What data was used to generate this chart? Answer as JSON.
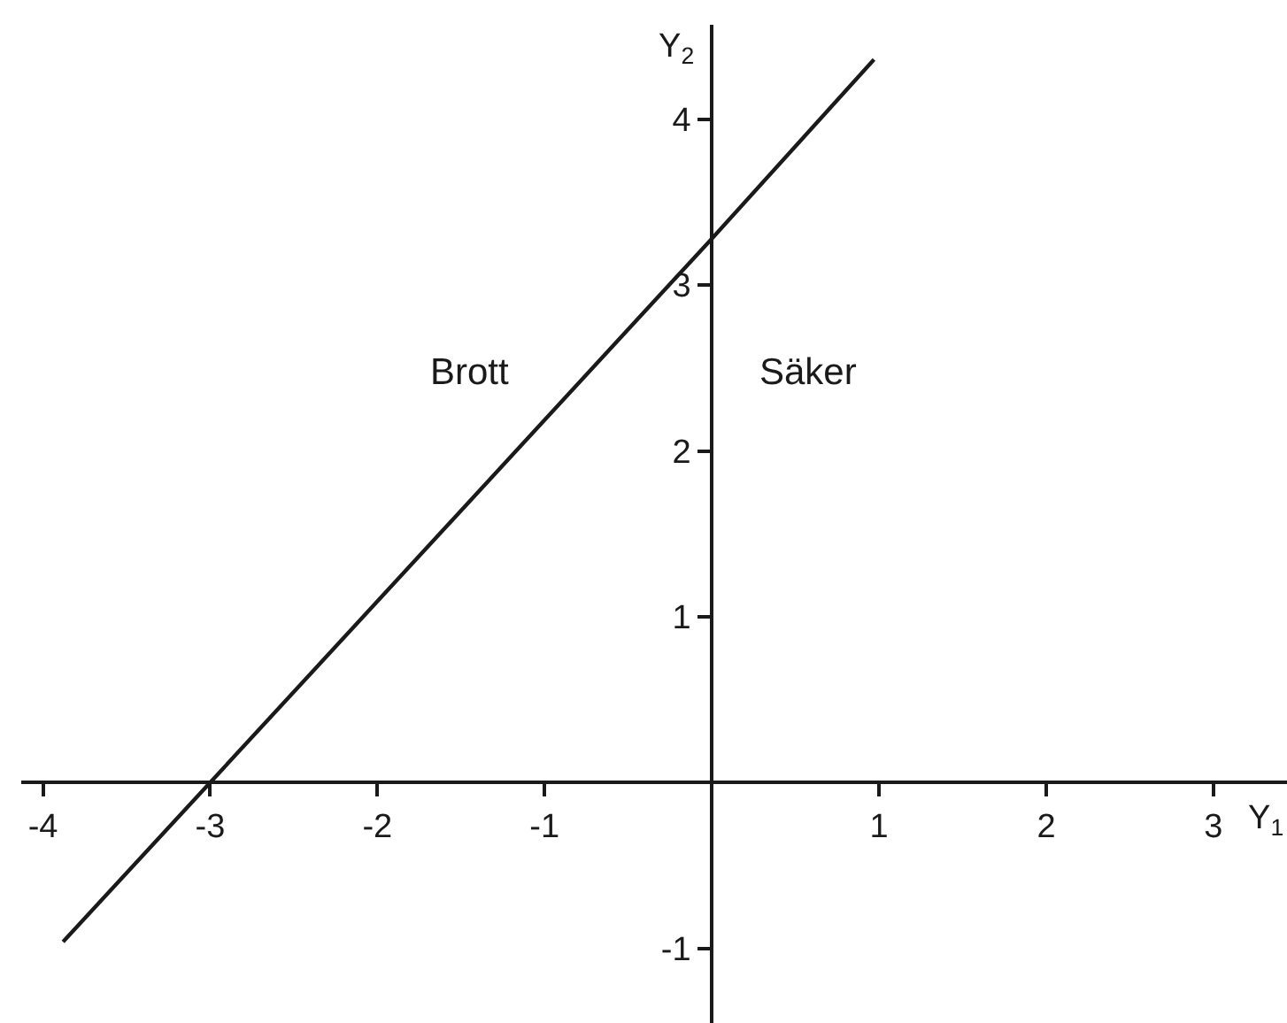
{
  "chart_data": {
    "type": "line",
    "x": [
      -3.88,
      -3,
      0,
      0.97
    ],
    "values": [
      -0.96,
      0,
      3.28,
      4.36
    ],
    "color": "#1a1a1a",
    "line_style": "solid",
    "xlabel": "Y$_{1}$",
    "ylabel": "Y$_{2}$",
    "xlim": [
      -4.13,
      3.44
    ],
    "ylim": [
      -1.45,
      4.57
    ],
    "xticks": [
      -4,
      -3,
      -2,
      -1,
      1,
      2,
      3
    ],
    "yticks": [
      -1,
      1,
      2,
      3,
      4
    ],
    "annotations": [
      "Brott",
      "Säker"
    ]
  }
}
